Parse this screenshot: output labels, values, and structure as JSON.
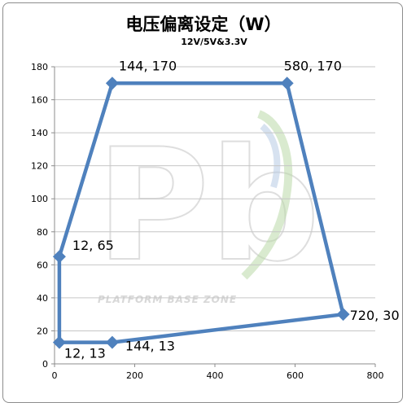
{
  "chart_data": {
    "type": "scatter",
    "title": "电压偏离设定（W）",
    "subtitle": "12V/5V&3.3V",
    "xlabel": "",
    "ylabel": "",
    "xlim": [
      0,
      800
    ],
    "ylim": [
      0,
      180
    ],
    "xticks": [
      0,
      200,
      400,
      600,
      800
    ],
    "yticks": [
      0,
      20,
      40,
      60,
      80,
      100,
      120,
      140,
      160,
      180
    ],
    "grid": "horizontal",
    "legend": "none",
    "line_color": "#4F81BD",
    "series": [
      {
        "closed": true,
        "points": [
          {
            "x": 12,
            "y": 65,
            "label": "12, 65"
          },
          {
            "x": 144,
            "y": 170,
            "label": "144, 170"
          },
          {
            "x": 580,
            "y": 170,
            "label": "580, 170"
          },
          {
            "x": 720,
            "y": 30,
            "label": "720, 30"
          },
          {
            "x": 144,
            "y": 13,
            "label": "144, 13"
          },
          {
            "x": 12,
            "y": 13,
            "label": "12, 13"
          }
        ]
      }
    ]
  },
  "watermark": {
    "logo_letters": "Pb",
    "text": "PLATFORM BASE ZONE"
  }
}
